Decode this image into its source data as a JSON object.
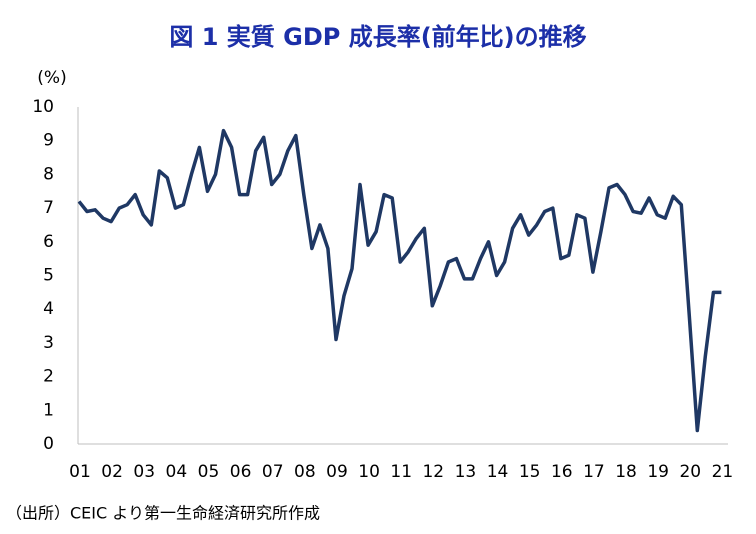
{
  "chart_data": {
    "type": "line",
    "title": "図 1  実質 GDP 成長率(前年比)の推移",
    "y_label": "(%)",
    "source": "（出所）CEIC より第一生命経済研究所作成",
    "categories": [
      "01",
      null,
      null,
      null,
      "02",
      null,
      null,
      null,
      "03",
      null,
      null,
      null,
      "04",
      null,
      null,
      null,
      "05",
      null,
      null,
      null,
      "06",
      null,
      null,
      null,
      "07",
      null,
      null,
      null,
      "08",
      null,
      null,
      null,
      "09",
      null,
      null,
      null,
      "10",
      null,
      null,
      null,
      "11",
      null,
      null,
      null,
      "12",
      null,
      null,
      null,
      "13",
      null,
      null,
      null,
      "14",
      null,
      null,
      null,
      "15",
      null,
      null,
      null,
      "16",
      null,
      null,
      null,
      "17",
      null,
      null,
      null,
      "18",
      null,
      null,
      null,
      "19",
      null,
      null,
      null,
      "20",
      null,
      null,
      null,
      "21"
    ],
    "values": [
      7.2,
      6.9,
      6.95,
      6.7,
      6.6,
      7.0,
      7.1,
      7.4,
      6.8,
      6.5,
      8.1,
      7.9,
      7.0,
      7.1,
      8.0,
      8.8,
      7.5,
      8.0,
      9.3,
      8.8,
      7.4,
      7.4,
      8.7,
      9.1,
      7.7,
      8.0,
      8.7,
      9.15,
      7.4,
      5.8,
      6.5,
      5.8,
      3.1,
      4.4,
      5.2,
      7.7,
      5.9,
      6.3,
      7.4,
      7.3,
      5.4,
      5.7,
      6.1,
      6.4,
      4.1,
      4.7,
      5.4,
      5.5,
      4.9,
      4.9,
      5.5,
      6.0,
      5.0,
      5.4,
      6.4,
      6.8,
      6.2,
      6.5,
      6.9,
      7.0,
      5.5,
      5.6,
      6.8,
      6.7,
      5.1,
      6.3,
      7.6,
      7.7,
      7.4,
      6.9,
      6.85,
      7.3,
      6.8,
      6.7,
      7.35,
      7.1,
      3.8,
      0.4,
      2.6,
      4.5,
      4.5
    ],
    "color": "#1f3864",
    "ylim": [
      0,
      10
    ],
    "yticks": [
      0,
      1,
      2,
      3,
      4,
      5,
      6,
      7,
      8,
      9,
      10
    ],
    "grid": false
  }
}
